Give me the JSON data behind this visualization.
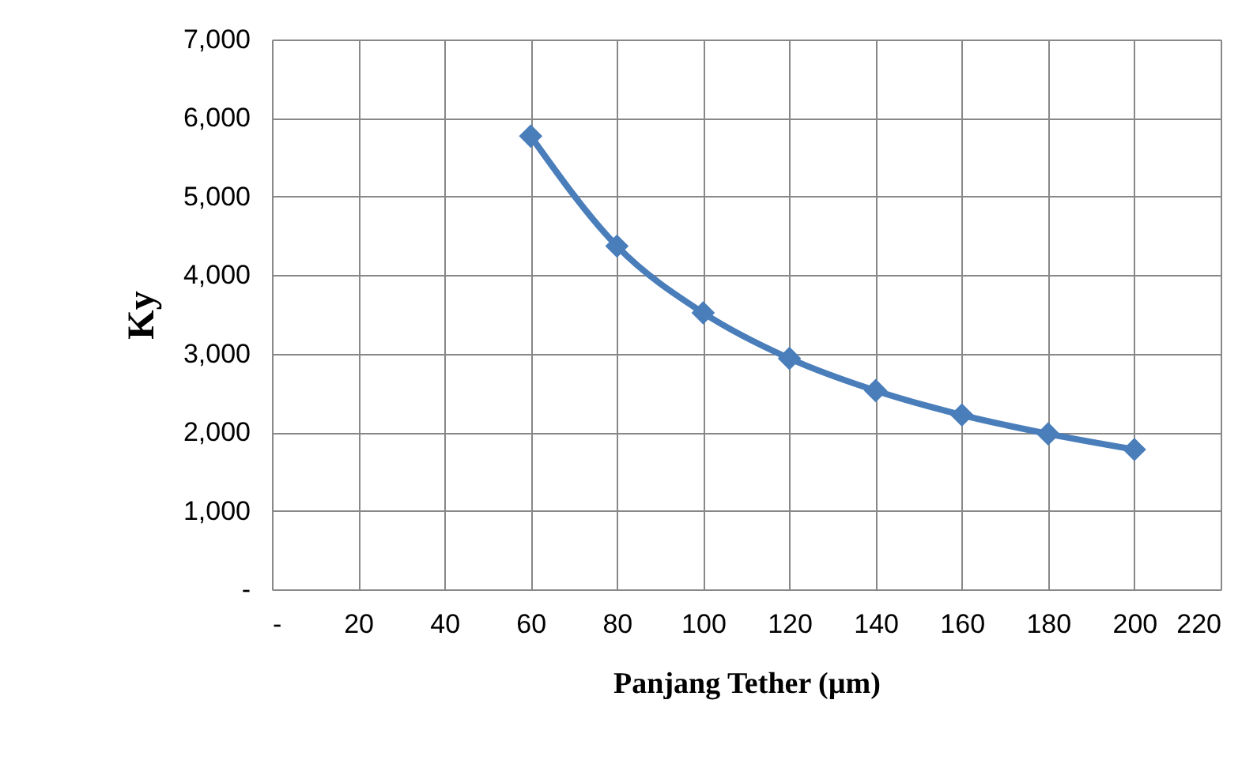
{
  "chart_data": {
    "type": "line",
    "xlabel": "Panjang Tether (µm)",
    "ylabel": "Ky",
    "x": [
      60,
      80,
      100,
      120,
      140,
      160,
      180,
      200
    ],
    "series": [
      {
        "color": "#4a7ebb",
        "values": [
          5770,
          4370,
          3520,
          2940,
          2530,
          2220,
          1980,
          1780
        ]
      }
    ],
    "xlim": [
      0,
      220
    ],
    "xticks": [
      {
        "value": 0,
        "label": "-"
      },
      20,
      40,
      60,
      80,
      100,
      120,
      140,
      160,
      180,
      200,
      220
    ],
    "ylim": [
      0,
      7000
    ],
    "yticks": [
      {
        "value": 0,
        "label": "-"
      },
      {
        "value": 1000,
        "label": "1,000"
      },
      {
        "value": 2000,
        "label": "2,000"
      },
      {
        "value": 3000,
        "label": "3,000"
      },
      {
        "value": 4000,
        "label": "4,000"
      },
      {
        "value": 5000,
        "label": "5,000"
      },
      {
        "value": 6000,
        "label": "6,000"
      },
      {
        "value": 7000,
        "label": "7,000"
      }
    ],
    "grid": true,
    "marker": "diamond",
    "line_style": "solid"
  }
}
